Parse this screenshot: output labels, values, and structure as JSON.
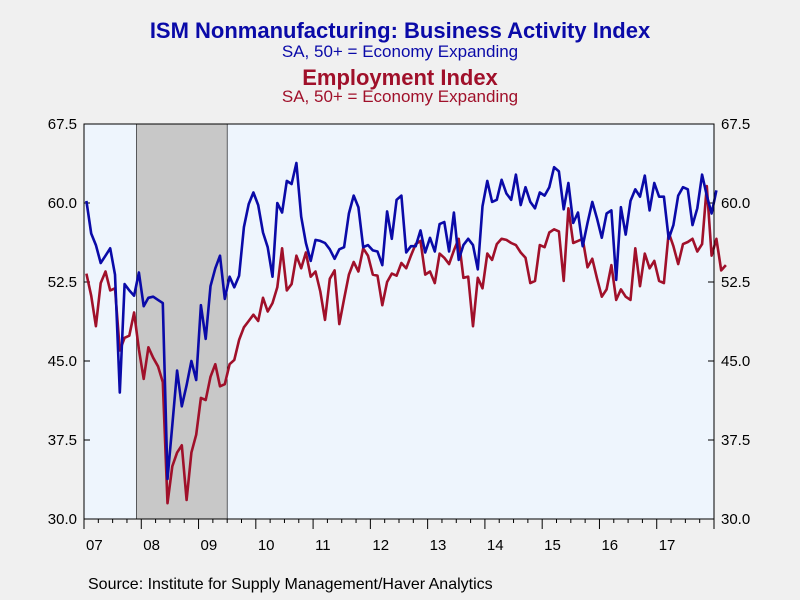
{
  "chart_data": {
    "type": "line",
    "title": "ISM Nonmanufacturing: Business Activity Index",
    "subtitle": "SA, 50+ = Economy Expanding",
    "title2": "Employment Index",
    "subtitle2": "SA, 50+ = Economy Expanding",
    "source": "Source:  Institute for Supply Management/Haver Analytics",
    "x_tick_labels": [
      "07",
      "08",
      "09",
      "10",
      "11",
      "12",
      "13",
      "14",
      "15",
      "16",
      "17"
    ],
    "y_ticks": [
      "30.0",
      "37.5",
      "45.0",
      "52.5",
      "60.0",
      "67.5"
    ],
    "ylim": [
      30.0,
      67.5
    ],
    "x_start": "2007-01",
    "x_end": "2017-12",
    "recession": {
      "start": "2007-12",
      "end": "2009-06",
      "color": "#c8c8c8"
    },
    "grid": false,
    "colors": {
      "activity": "#0a0aa8",
      "employment": "#a0102a",
      "plot_bg": "#eef5fd"
    },
    "series": [
      {
        "name": "ISM Nonmanufacturing: Business Activity Index",
        "values": [
          60.2,
          57.1,
          56.0,
          54.3,
          55.0,
          55.7,
          53.2,
          42.0,
          52.3,
          51.7,
          51.2,
          53.4,
          50.2,
          51.0,
          51.1,
          50.8,
          50.5,
          33.8,
          38.9,
          44.1,
          40.7,
          42.7,
          45.0,
          43.2,
          50.3,
          47.1,
          52.1,
          53.8,
          55.0,
          50.9,
          53.0,
          52.0,
          53.1,
          57.7,
          59.9,
          61.0,
          59.8,
          57.2,
          55.8,
          53.0,
          60.0,
          59.1,
          62.1,
          61.8,
          63.8,
          58.7,
          56.2,
          54.5,
          56.5,
          56.4,
          56.2,
          55.6,
          54.7,
          55.6,
          55.8,
          59.0,
          60.7,
          59.6,
          55.8,
          56.0,
          55.5,
          55.4,
          54.1,
          59.2,
          56.6,
          60.3,
          60.7,
          55.3,
          55.9,
          55.9,
          57.4,
          55.3,
          56.7,
          55.4,
          58.0,
          58.2,
          55.4,
          59.1,
          54.6,
          56.0,
          56.6,
          56.0,
          53.7,
          59.7,
          62.1,
          60.1,
          60.3,
          62.2,
          60.9,
          60.3,
          62.7,
          59.8,
          61.5,
          60.1,
          59.5,
          61.0,
          60.7,
          61.5,
          63.4,
          63.0,
          59.4,
          61.9,
          58.1,
          59.1,
          55.9,
          58.1,
          60.1,
          58.5,
          56.7,
          59.0,
          59.3,
          52.7,
          59.6,
          57.0,
          60.2,
          61.3,
          60.6,
          62.6,
          59.3,
          61.9,
          60.6,
          60.6,
          56.6,
          57.9,
          60.7,
          61.5,
          61.3,
          57.9,
          59.5,
          62.7,
          60.7,
          59.0,
          61.2
        ]
      },
      {
        "name": "Employment Index",
        "values": [
          53.3,
          51.2,
          48.3,
          52.4,
          53.5,
          51.7,
          51.9,
          46.0,
          47.2,
          47.4,
          49.6,
          46.1,
          43.3,
          46.3,
          45.3,
          44.5,
          43.0,
          31.5,
          35.0,
          36.3,
          37.0,
          31.8,
          36.3,
          38.0,
          41.5,
          41.3,
          43.5,
          44.7,
          42.6,
          42.8,
          44.7,
          45.1,
          47.0,
          48.2,
          48.8,
          49.4,
          48.8,
          51.0,
          49.7,
          50.5,
          52.0,
          55.7,
          51.7,
          52.3,
          55.0,
          53.8,
          55.3,
          53.0,
          53.5,
          51.6,
          48.9,
          52.8,
          53.6,
          48.5,
          50.9,
          53.2,
          54.4,
          53.5,
          55.7,
          55.0,
          53.2,
          53.1,
          50.3,
          52.5,
          53.3,
          53.1,
          54.3,
          53.8,
          55.0,
          56.1,
          56.4,
          53.2,
          53.5,
          52.4,
          55.2,
          54.8,
          54.2,
          55.5,
          56.6,
          52.9,
          53.0,
          48.3,
          52.9,
          51.9,
          55.2,
          54.6,
          56.1,
          56.6,
          56.5,
          56.2,
          56.0,
          55.3,
          54.8,
          52.4,
          52.6,
          56.0,
          55.8,
          57.2,
          57.5,
          57.3,
          52.6,
          59.5,
          56.2,
          56.4,
          56.6,
          53.9,
          54.7,
          52.8,
          51.1,
          51.8,
          54.1,
          50.8,
          51.8,
          51.1,
          50.8,
          55.7,
          52.1,
          55.2,
          53.8,
          54.5,
          52.6,
          52.4,
          57.2,
          55.9,
          54.2,
          56.1,
          56.3,
          56.6,
          55.4,
          56.1,
          61.6,
          55.0,
          56.6,
          53.6,
          54.1
        ]
      }
    ]
  }
}
